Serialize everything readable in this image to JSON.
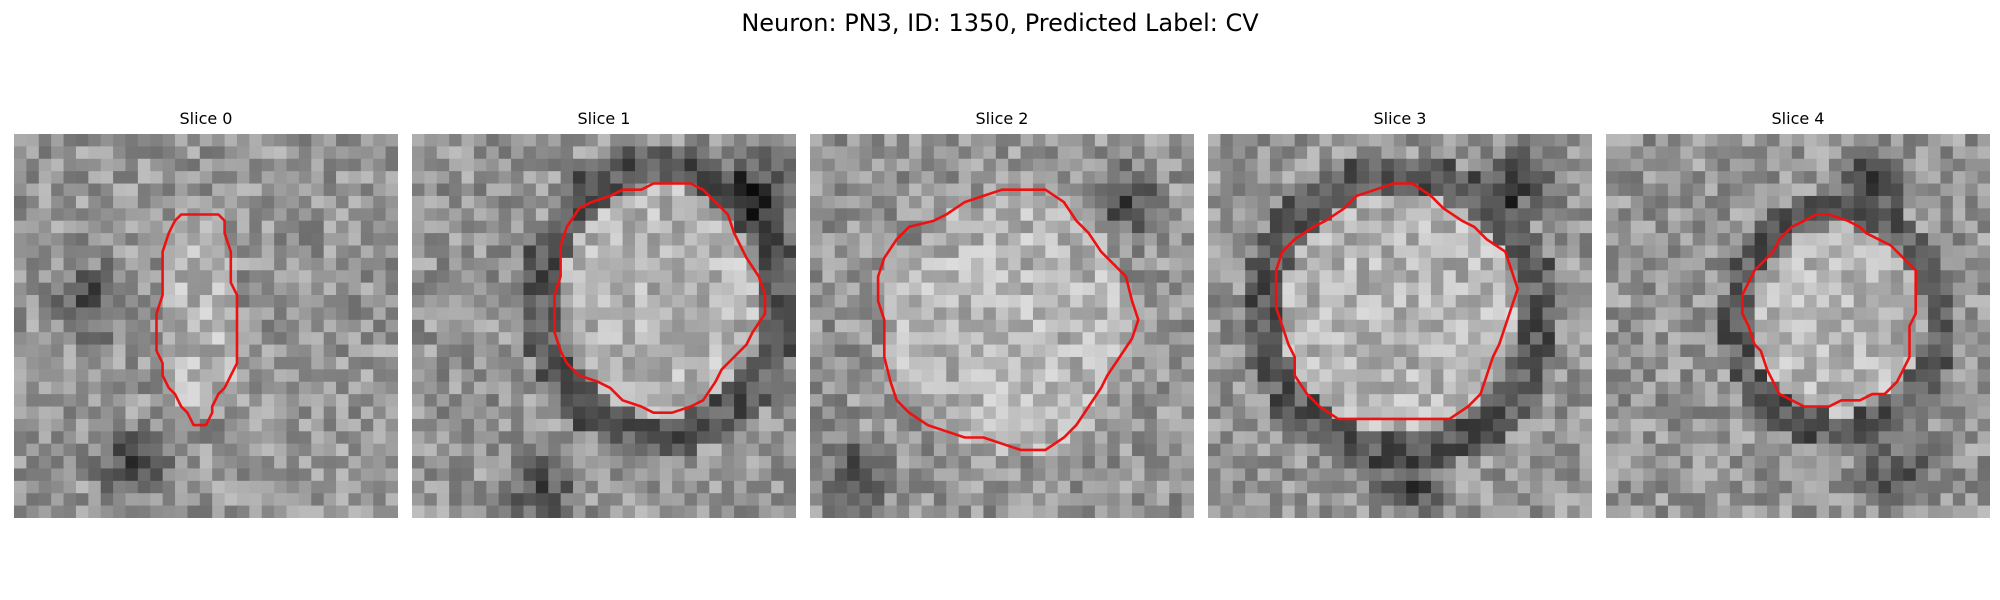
{
  "figure": {
    "title": "Neuron: PN3, ID: 1350, Predicted Label: CV"
  },
  "style": {
    "contour_color": "#ee1111",
    "colormap": "grayscale"
  },
  "panels": [
    {
      "title": "Slice 0"
    },
    {
      "title": "Slice 1"
    },
    {
      "title": "Slice 2"
    },
    {
      "title": "Slice 3"
    },
    {
      "title": "Slice 4"
    }
  ]
}
